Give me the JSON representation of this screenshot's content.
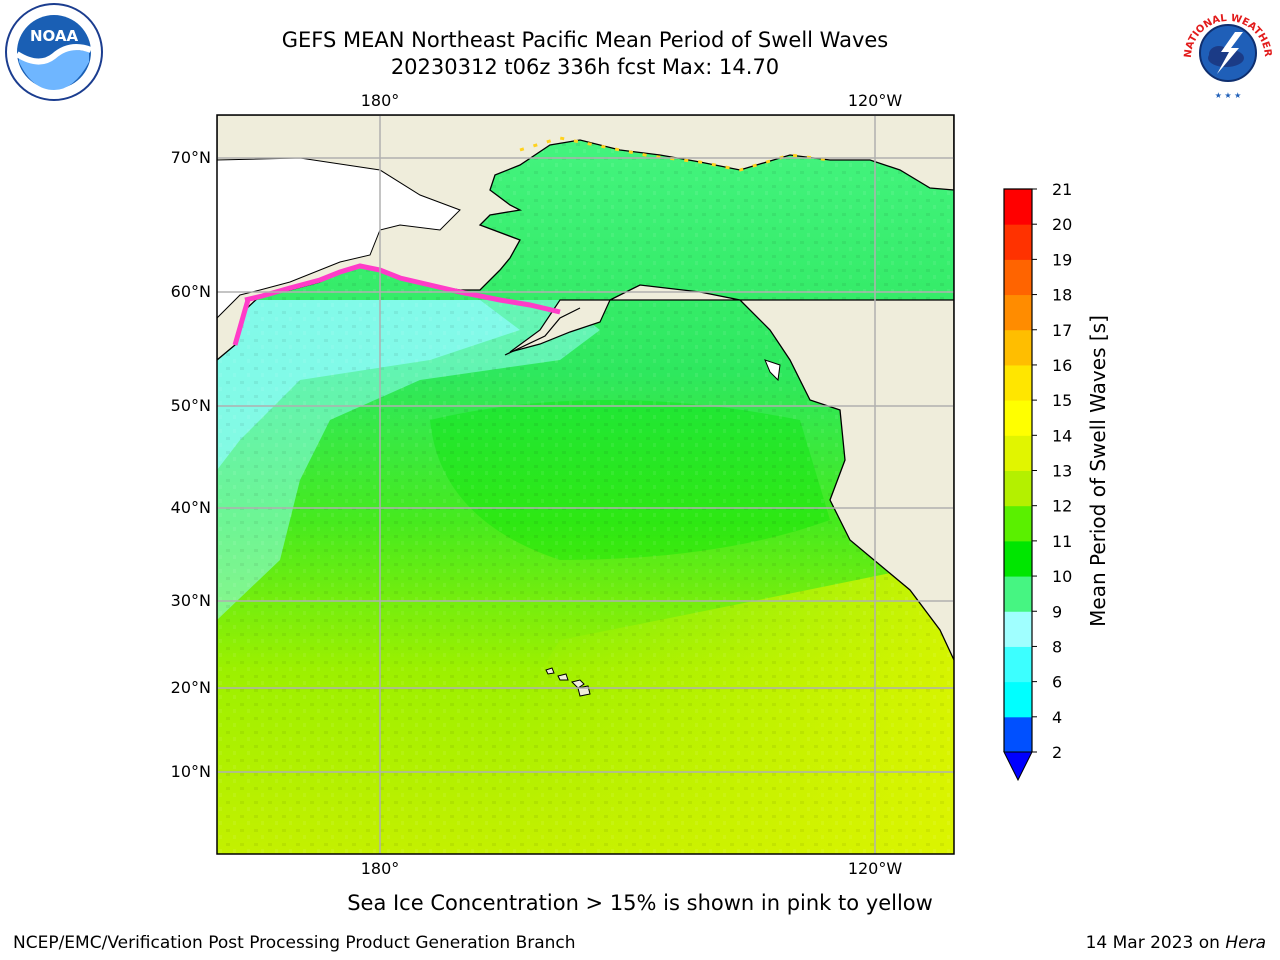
{
  "header": {
    "title_line1": "GEFS MEAN Northeast Pacific Mean Period of Swell Waves",
    "title_line2": "20230312 t06z 336h fcst   Max: 14.70"
  },
  "logos": {
    "left": {
      "icon": "noaa-logo",
      "text": "NOAA"
    },
    "right": {
      "icon": "national-weather-service-logo",
      "text": "NATIONAL WEATHER SERVICE"
    }
  },
  "map": {
    "lon_labels_top": [
      "180°",
      "120°W"
    ],
    "lon_labels_bottom": [
      "180°",
      "120°W"
    ],
    "lat_labels": [
      "70°N",
      "60°N",
      "50°N",
      "40°N",
      "30°N",
      "20°N",
      "10°N"
    ],
    "colors": {
      "land": "#efeddb",
      "grid": "#b0b0b0",
      "coast": "#000000",
      "ice_pink": "#ff3cc8",
      "ice_yellow": "#ffd21e"
    }
  },
  "colorbar": {
    "label": "Mean Period of Swell Waves [s]",
    "ticks": [
      "2",
      "4",
      "6",
      "8",
      "9",
      "10",
      "11",
      "12",
      "13",
      "14",
      "15",
      "16",
      "17",
      "18",
      "19",
      "20",
      "21"
    ],
    "colors": [
      "#0050ff",
      "#00ffff",
      "#3cffff",
      "#a0ffff",
      "#46f582",
      "#00e600",
      "#5af000",
      "#b4f000",
      "#e1f500",
      "#ffff00",
      "#ffe600",
      "#ffbe00",
      "#ff8c00",
      "#ff6400",
      "#ff3200",
      "#ff0000"
    ],
    "under_color": "#0000ff"
  },
  "footer": {
    "note": "Sea Ice Concentration > 15% is shown in pink to yellow",
    "credit": "NCEP/EMC/Verification Post Processing Product Generation Branch",
    "date_text": "14 Mar 2023 on ",
    "host": "Hera"
  }
}
